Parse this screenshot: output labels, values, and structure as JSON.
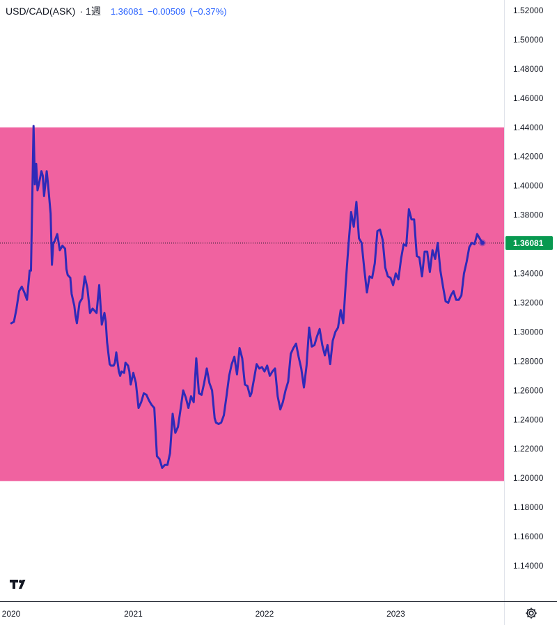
{
  "header": {
    "symbol": "USD/CAD(ASK)",
    "separator": "·",
    "interval": "1週",
    "last": "1.36081",
    "change": "−0.00509",
    "change_pct": "(−0.37%)"
  },
  "price_label": "1.36081",
  "colors": {
    "line": "#2f2ab8",
    "zone": "#f062a0",
    "price_tag": "#089950",
    "text": "#131722",
    "quote": "#2962ff"
  },
  "icons": {
    "logo": "tradingview-logo-icon",
    "settings": "gear-icon"
  },
  "chart_data": {
    "type": "line",
    "title": "USD/CAD(ASK)",
    "interval": "1週",
    "ylim": [
      1.13,
      1.52
    ],
    "xlim": [
      2020.0,
      2023.73
    ],
    "y_ticks": [
      "1.52000",
      "1.50000",
      "1.48000",
      "1.46000",
      "1.44000",
      "1.42000",
      "1.40000",
      "1.38000",
      "1.36000",
      "1.34000",
      "1.32000",
      "1.30000",
      "1.28000",
      "1.26000",
      "1.24000",
      "1.22000",
      "1.20000",
      "1.18000",
      "1.16000",
      "1.14000"
    ],
    "x_ticks": [
      {
        "label": "2020",
        "value": 2020.0
      },
      {
        "label": "2021",
        "value": 2021.0
      },
      {
        "label": "2022",
        "value": 2022.0
      },
      {
        "label": "2023",
        "value": 2023.0
      }
    ],
    "current_price": 1.36081,
    "highlight_zone": {
      "from": 1.198,
      "to": 1.44
    },
    "series": [
      {
        "x": [
          2020.07,
          2020.09,
          2020.11,
          2020.13,
          2020.15,
          2020.17,
          2020.19,
          2020.21,
          2020.22,
          2020.24,
          2020.25,
          2020.26,
          2020.27,
          2020.28,
          2020.3,
          2020.31,
          2020.32,
          2020.34,
          2020.35,
          2020.37,
          2020.38,
          2020.39,
          2020.4,
          2020.42,
          2020.44,
          2020.46,
          2020.48,
          2020.49,
          2020.5,
          2020.52,
          2020.53,
          2020.55,
          2020.56,
          2020.57,
          2020.59,
          2020.61,
          2020.63,
          2020.65,
          2020.67,
          2020.69,
          2020.72,
          2020.74,
          2020.76,
          2020.78,
          2020.79,
          2020.8,
          2020.82,
          2020.83,
          2020.85,
          2020.86,
          2020.87,
          2020.89,
          2020.9,
          2020.91,
          2020.93,
          2020.94,
          2020.96,
          2020.97,
          2020.98,
          2021.0,
          2021.02,
          2021.04,
          2021.06,
          2021.08,
          2021.1,
          2021.12,
          2021.14,
          2021.16,
          2021.18,
          2021.2,
          2021.22,
          2021.24,
          2021.26,
          2021.28,
          2021.3,
          2021.32,
          2021.34,
          2021.36,
          2021.38,
          2021.4,
          2021.42,
          2021.44,
          2021.46,
          2021.48,
          2021.5,
          2021.52,
          2021.54,
          2021.56,
          2021.58,
          2021.6,
          2021.62,
          2021.63,
          2021.65,
          2021.67,
          2021.69,
          2021.71,
          2021.73,
          2021.75,
          2021.77,
          2021.79,
          2021.81,
          2021.83,
          2021.85,
          2021.87,
          2021.89,
          2021.9,
          2021.92,
          2021.94,
          2021.96,
          2021.98,
          2022.0,
          2022.02,
          2022.04,
          2022.06,
          2022.08,
          2022.1,
          2022.12,
          2022.14,
          2022.16,
          2022.18,
          2022.2,
          2022.22,
          2022.24,
          2022.26,
          2022.28,
          2022.3,
          2022.32,
          2022.34,
          2022.36,
          2022.38,
          2022.4,
          2022.42,
          2022.44,
          2022.46,
          2022.48,
          2022.5,
          2022.52,
          2022.54,
          2022.56,
          2022.58,
          2022.6,
          2022.62,
          2022.64,
          2022.66,
          2022.68,
          2022.7,
          2022.72,
          2022.74,
          2022.76,
          2022.78,
          2022.8,
          2022.82,
          2022.84,
          2022.86,
          2022.88,
          2022.9,
          2022.92,
          2022.94,
          2022.96,
          2022.98,
          2023.0,
          2023.02,
          2023.04,
          2023.06,
          2023.08,
          2023.1,
          2023.12,
          2023.14,
          2023.16,
          2023.18,
          2023.2,
          2023.22,
          2023.24,
          2023.26,
          2023.28,
          2023.3,
          2023.32,
          2023.34,
          2023.36,
          2023.38,
          2023.4,
          2023.42,
          2023.44,
          2023.46,
          2023.48,
          2023.5,
          2023.52,
          2023.54,
          2023.56,
          2023.58,
          2023.6,
          2023.62,
          2023.64,
          2023.66
        ],
        "y": [
          1.306,
          1.307,
          1.316,
          1.328,
          1.331,
          1.327,
          1.322,
          1.342,
          1.342,
          1.441,
          1.401,
          1.415,
          1.397,
          1.401,
          1.41,
          1.407,
          1.393,
          1.41,
          1.401,
          1.381,
          1.346,
          1.361,
          1.362,
          1.367,
          1.356,
          1.359,
          1.357,
          1.343,
          1.339,
          1.337,
          1.326,
          1.318,
          1.311,
          1.306,
          1.32,
          1.323,
          1.338,
          1.33,
          1.313,
          1.316,
          1.313,
          1.332,
          1.305,
          1.313,
          1.307,
          1.293,
          1.278,
          1.277,
          1.277,
          1.279,
          1.286,
          1.273,
          1.27,
          1.273,
          1.272,
          1.279,
          1.277,
          1.273,
          1.264,
          1.272,
          1.265,
          1.248,
          1.252,
          1.258,
          1.257,
          1.253,
          1.25,
          1.248,
          1.215,
          1.213,
          1.207,
          1.209,
          1.209,
          1.217,
          1.244,
          1.231,
          1.235,
          1.247,
          1.26,
          1.255,
          1.248,
          1.256,
          1.252,
          1.282,
          1.258,
          1.257,
          1.265,
          1.275,
          1.265,
          1.26,
          1.241,
          1.238,
          1.237,
          1.238,
          1.243,
          1.256,
          1.27,
          1.278,
          1.283,
          1.271,
          1.289,
          1.282,
          1.264,
          1.263,
          1.256,
          1.258,
          1.268,
          1.278,
          1.275,
          1.276,
          1.273,
          1.277,
          1.27,
          1.273,
          1.275,
          1.256,
          1.247,
          1.252,
          1.26,
          1.266,
          1.285,
          1.289,
          1.292,
          1.283,
          1.275,
          1.262,
          1.277,
          1.303,
          1.29,
          1.291,
          1.297,
          1.302,
          1.291,
          1.284,
          1.291,
          1.278,
          1.294,
          1.3,
          1.303,
          1.315,
          1.306,
          1.335,
          1.36,
          1.382,
          1.372,
          1.389,
          1.364,
          1.361,
          1.343,
          1.327,
          1.338,
          1.337,
          1.347,
          1.369,
          1.37,
          1.363,
          1.344,
          1.338,
          1.337,
          1.332,
          1.34,
          1.336,
          1.35,
          1.36,
          1.359,
          1.384,
          1.377,
          1.377,
          1.352,
          1.351,
          1.338,
          1.355,
          1.355,
          1.341,
          1.356,
          1.35,
          1.361,
          1.342,
          1.331,
          1.321,
          1.32,
          1.325,
          1.328,
          1.322,
          1.322,
          1.325,
          1.34,
          1.348,
          1.358,
          1.361,
          1.36,
          1.367,
          1.364,
          1.361
        ]
      }
    ]
  }
}
